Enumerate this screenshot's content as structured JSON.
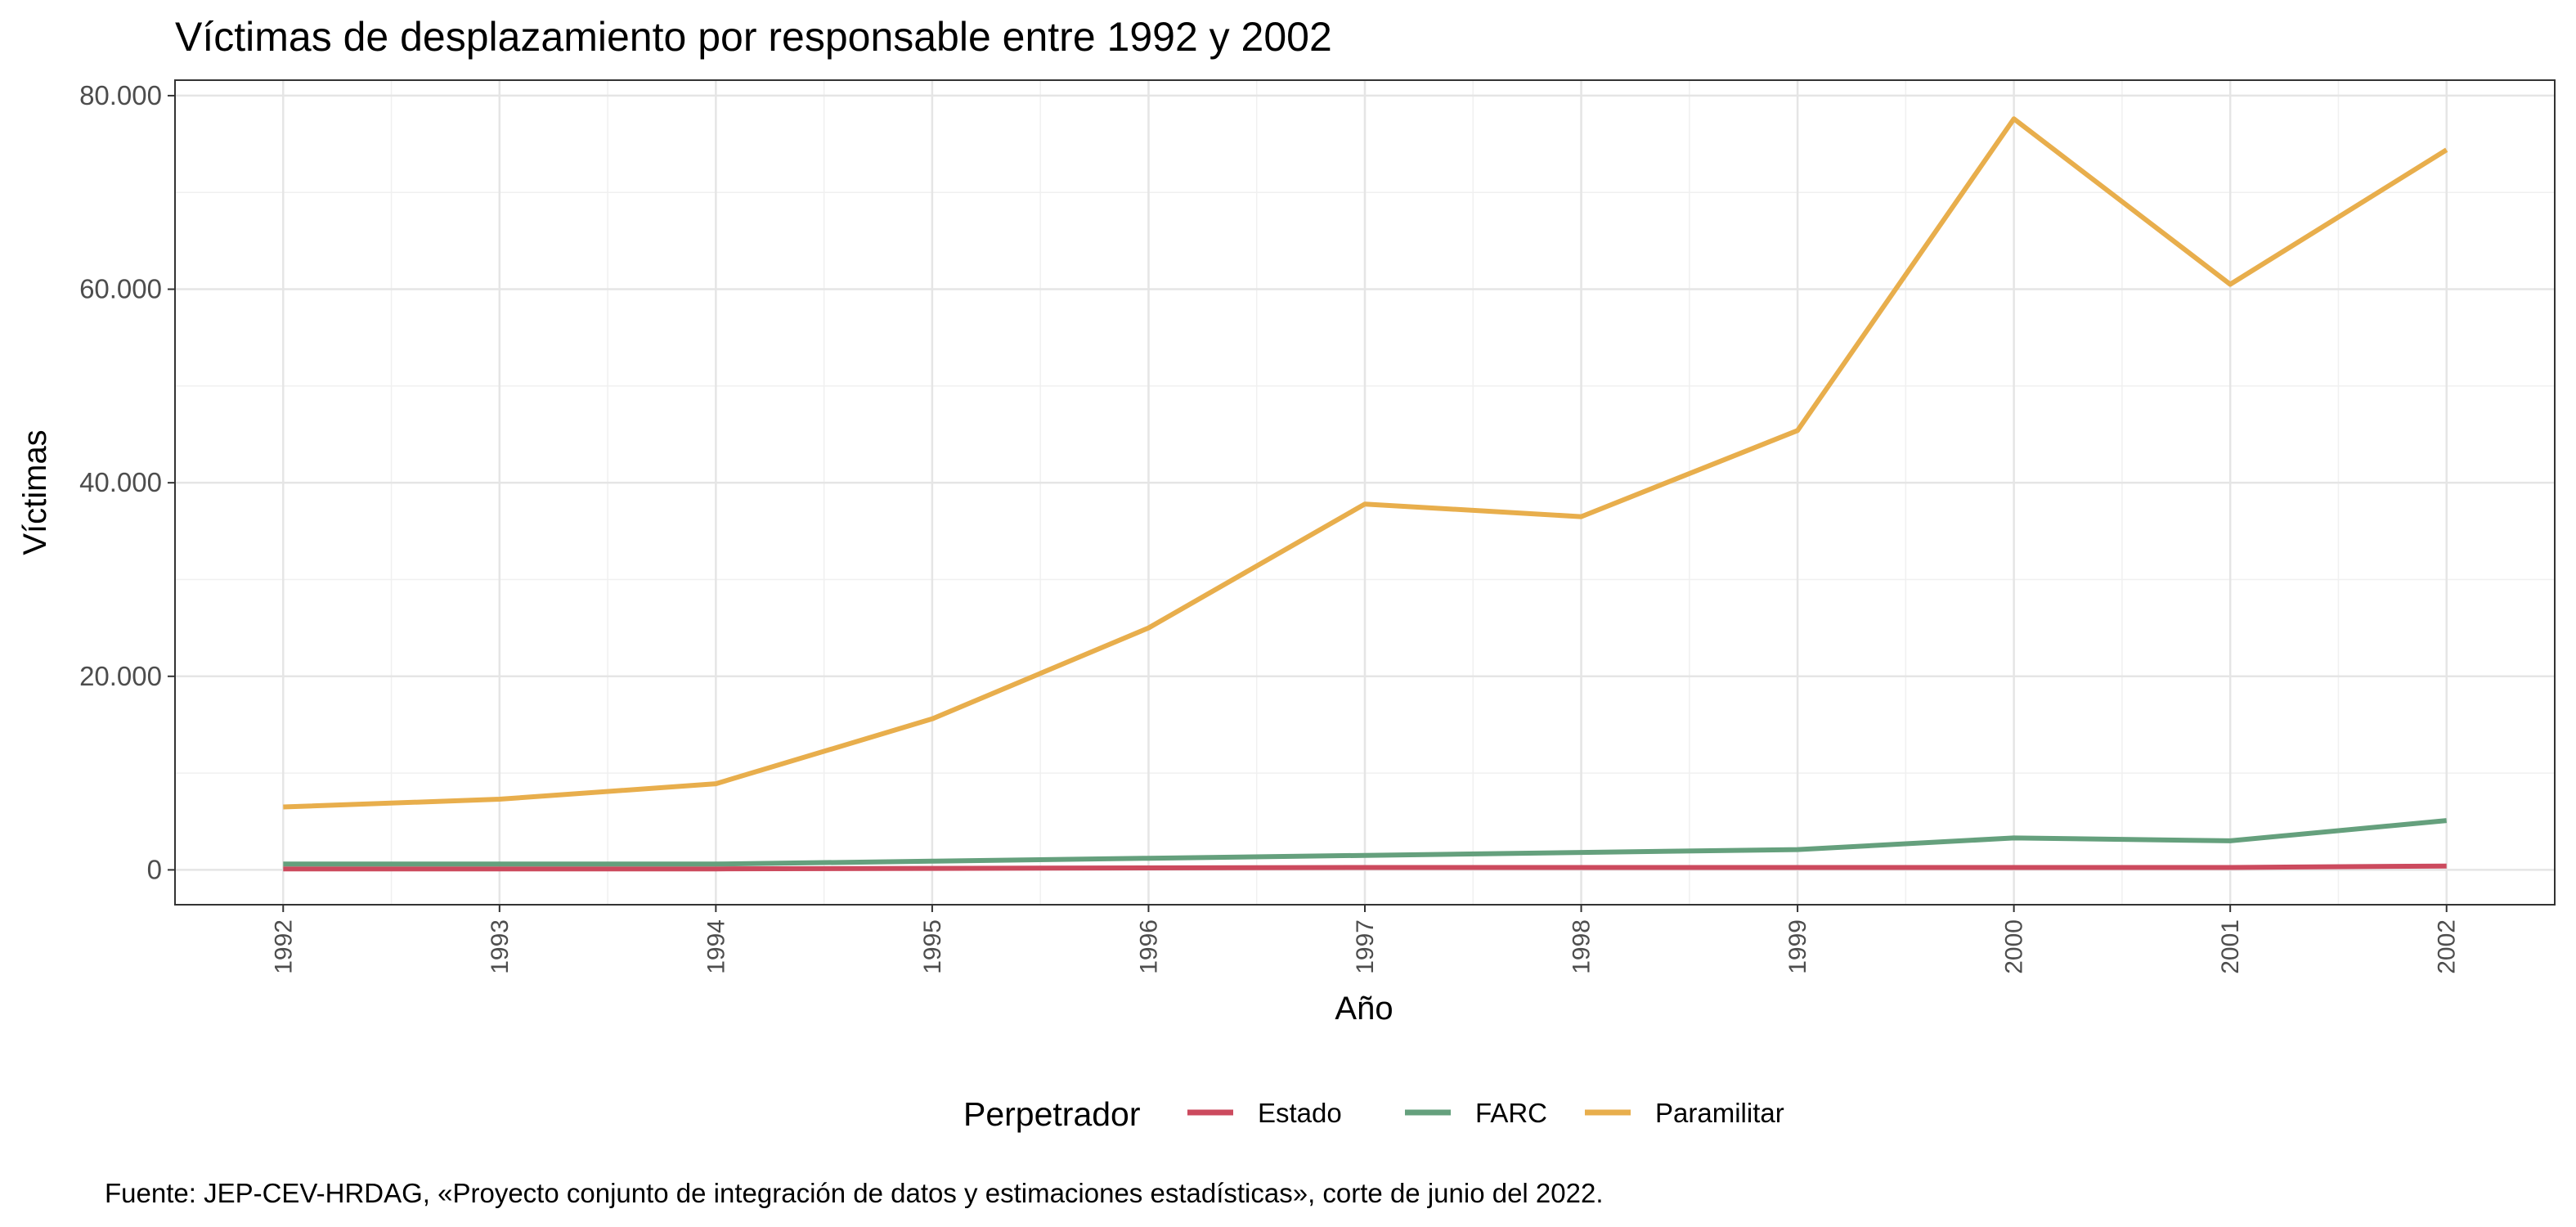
{
  "chart_data": {
    "type": "line",
    "title": "Víctimas de desplazamiento por responsable entre 1992 y 2002",
    "xlabel": "Año",
    "ylabel": "Víctimas",
    "x": [
      1992,
      1993,
      1994,
      1995,
      1996,
      1997,
      1998,
      1999,
      2000,
      2001,
      2002
    ],
    "x_tick_labels": [
      "1992",
      "1993",
      "1994",
      "1995",
      "1996",
      "1997",
      "1998",
      "1999",
      "2000",
      "2001",
      "2002"
    ],
    "y_ticks": [
      0,
      20000,
      40000,
      60000,
      80000
    ],
    "y_tick_labels": [
      "0",
      "20.000",
      "40.000",
      "60.000",
      "80.000"
    ],
    "ylim": [
      -3600,
      81600
    ],
    "xlim": [
      1991.5,
      2002.5
    ],
    "grid": true,
    "series": [
      {
        "name": "Estado",
        "color": "#cc4a5e",
        "values": [
          100,
          100,
          100,
          150,
          200,
          250,
          250,
          250,
          250,
          250,
          400
        ]
      },
      {
        "name": "FARC",
        "color": "#65a07d",
        "values": [
          600,
          600,
          600,
          900,
          1200,
          1500,
          1800,
          2100,
          3300,
          3000,
          5100
        ]
      },
      {
        "name": "Paramilitar",
        "color": "#e8ae4c",
        "values": [
          6500,
          7300,
          8900,
          15600,
          25000,
          37800,
          36500,
          45400,
          77600,
          60500,
          74400
        ]
      }
    ],
    "legend": {
      "title": "Perpetrador",
      "position": "bottom",
      "entries": [
        "Estado",
        "FARC",
        "Paramilitar"
      ]
    },
    "caption": "Fuente: JEP-CEV-HRDAG, «Proyecto conjunto de integración de datos y estimaciones estadísticas», corte de junio del 2022."
  }
}
